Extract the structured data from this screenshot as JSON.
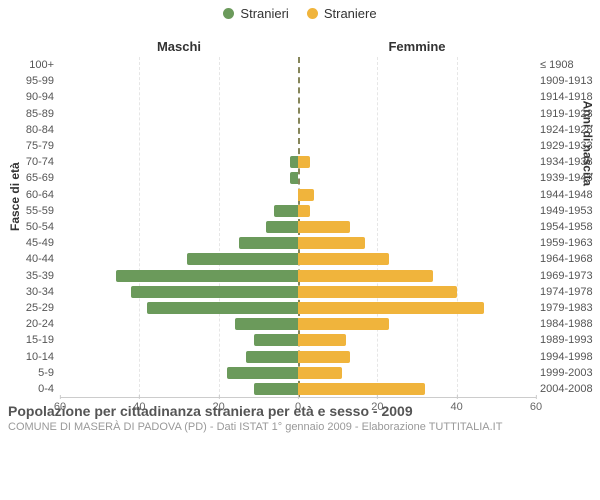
{
  "chart": {
    "type": "population-pyramid",
    "legend": [
      {
        "label": "Stranieri",
        "color": "#6b9a5b"
      },
      {
        "label": "Straniere",
        "color": "#f0b43c"
      }
    ],
    "group_left_label": "Maschi",
    "group_right_label": "Femmine",
    "yaxis_left_title": "Fasce di età",
    "yaxis_right_title": "Anni di nascita",
    "xlim_max": 60,
    "xticks": [
      60,
      40,
      20,
      0,
      20,
      40,
      60
    ],
    "center_line_color": "#7a7a4a",
    "grid_color": "#e6e6e6",
    "axis_color": "#cccccc",
    "bar_color_left": "#6b9a5b",
    "bar_color_right": "#f0b43c",
    "background_color": "#ffffff",
    "text_color": "#555555",
    "label_fontsize": 11,
    "title_fontsize": 14,
    "rows": [
      {
        "age": "100+",
        "birth": "≤ 1908",
        "m": 0,
        "f": 0
      },
      {
        "age": "95-99",
        "birth": "1909-1913",
        "m": 0,
        "f": 0
      },
      {
        "age": "90-94",
        "birth": "1914-1918",
        "m": 0,
        "f": 0
      },
      {
        "age": "85-89",
        "birth": "1919-1923",
        "m": 0,
        "f": 0
      },
      {
        "age": "80-84",
        "birth": "1924-1928",
        "m": 0,
        "f": 0
      },
      {
        "age": "75-79",
        "birth": "1929-1933",
        "m": 0,
        "f": 0
      },
      {
        "age": "70-74",
        "birth": "1934-1938",
        "m": 2,
        "f": 3
      },
      {
        "age": "65-69",
        "birth": "1939-1943",
        "m": 2,
        "f": 0
      },
      {
        "age": "60-64",
        "birth": "1944-1948",
        "m": 0,
        "f": 4
      },
      {
        "age": "55-59",
        "birth": "1949-1953",
        "m": 6,
        "f": 3
      },
      {
        "age": "50-54",
        "birth": "1954-1958",
        "m": 8,
        "f": 13
      },
      {
        "age": "45-49",
        "birth": "1959-1963",
        "m": 15,
        "f": 17
      },
      {
        "age": "40-44",
        "birth": "1964-1968",
        "m": 28,
        "f": 23
      },
      {
        "age": "35-39",
        "birth": "1969-1973",
        "m": 46,
        "f": 34
      },
      {
        "age": "30-34",
        "birth": "1974-1978",
        "m": 42,
        "f": 40
      },
      {
        "age": "25-29",
        "birth": "1979-1983",
        "m": 38,
        "f": 47
      },
      {
        "age": "20-24",
        "birth": "1984-1988",
        "m": 16,
        "f": 23
      },
      {
        "age": "15-19",
        "birth": "1989-1993",
        "m": 11,
        "f": 12
      },
      {
        "age": "10-14",
        "birth": "1994-1998",
        "m": 13,
        "f": 13
      },
      {
        "age": "5-9",
        "birth": "1999-2003",
        "m": 18,
        "f": 11
      },
      {
        "age": "0-4",
        "birth": "2004-2008",
        "m": 11,
        "f": 32
      }
    ]
  },
  "footer": {
    "title": "Popolazione per cittadinanza straniera per età e sesso - 2009",
    "subtitle": "COMUNE DI MASERÀ DI PADOVA (PD) - Dati ISTAT 1° gennaio 2009 - Elaborazione TUTTITALIA.IT"
  }
}
